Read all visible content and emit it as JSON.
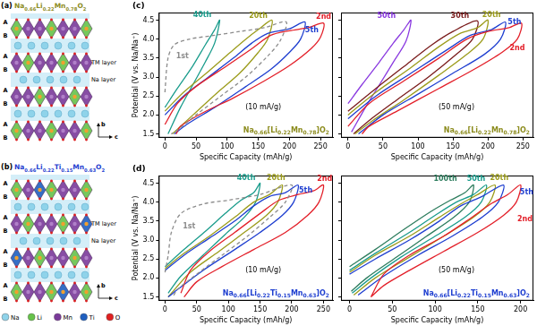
{
  "structures": [
    {
      "panel": "(a)",
      "formula": "Na0.66Li0.22Mn0.78O2",
      "color": "#8c8c1e",
      "layer_labels": [
        "A",
        "B",
        "A",
        "B",
        "A",
        "B",
        "A",
        "B"
      ],
      "layer_names": [
        "TM layer",
        "Na layer"
      ],
      "axes": [
        "b",
        "c"
      ]
    },
    {
      "panel": "(b)",
      "formula": "Na0.66Li0.22Ti0.15Mn0.63O2",
      "color": "#1f3fd0",
      "layer_labels": [
        "A",
        "B",
        "A",
        "B",
        "A",
        "B",
        "A",
        "B"
      ],
      "layer_names": [
        "TM layer",
        "Na layer"
      ],
      "axes": [
        "b",
        "c"
      ]
    }
  ],
  "structure_legend": [
    {
      "label": "Na",
      "color": "#8fd3ea"
    },
    {
      "label": "Li",
      "color": "#66c24a"
    },
    {
      "label": "Mn",
      "color": "#7a3a9a"
    },
    {
      "label": "Ti",
      "color": "#1f5fbf"
    },
    {
      "label": "O",
      "color": "#e02020"
    }
  ],
  "chart_data": [
    {
      "type": "line",
      "panel": "(c)",
      "title": "Na0.66[Li0.22Mn0.78]O2",
      "color": "#8c8c1e",
      "subtitle": "(10 mA/g)",
      "x_label": "Specific Capacity (mAh/g)",
      "y_label": "Potential (V vs. Na/Na⁺)",
      "xlim": [
        -10,
        270
      ],
      "ylim": [
        1.4,
        4.7
      ],
      "xticks": [
        0,
        50,
        100,
        150,
        200,
        250
      ],
      "yticks": [
        1.5,
        {
          "value": 2,
          "label": "2.0"
        },
        2.5,
        {
          "value": 3,
          "label": "3.0"
        },
        3.5,
        {
          "value": 4,
          "label": "4.0"
        },
        4.5
      ],
      "grid": false,
      "series": [
        {
          "name": "1st",
          "color": "#8c8c8c",
          "line_style": "dashed",
          "x": [
            0,
            5,
            15,
            40,
            80,
            120,
            160,
            195,
            185,
            165,
            130,
            90,
            50,
            20,
            10
          ],
          "values": [
            2.6,
            3.5,
            3.85,
            4.0,
            4.1,
            4.2,
            4.3,
            4.45,
            3.95,
            3.55,
            3.0,
            2.5,
            2.0,
            1.6,
            1.5
          ]
        },
        {
          "name": "2nd",
          "color": "#e3202a",
          "x": [
            0,
            20,
            50,
            100,
            140,
            170,
            200,
            230,
            255,
            250,
            235,
            200,
            160,
            110,
            60,
            25,
            18
          ],
          "values": [
            1.75,
            2.3,
            2.75,
            3.3,
            3.75,
            4.1,
            4.22,
            4.3,
            4.42,
            4.05,
            3.75,
            3.3,
            2.9,
            2.45,
            2.05,
            1.7,
            1.5
          ]
        },
        {
          "name": "5th",
          "color": "#1f3fd0",
          "x": [
            0,
            30,
            70,
            110,
            140,
            165,
            200,
            225,
            218,
            200,
            170,
            130,
            80,
            35,
            15
          ],
          "values": [
            2.0,
            2.5,
            3.0,
            3.5,
            3.9,
            4.15,
            4.27,
            4.45,
            4.0,
            3.65,
            3.2,
            2.75,
            2.2,
            1.75,
            1.5
          ]
        },
        {
          "name": "20th",
          "color": "#9c9c1c",
          "x": [
            0,
            30,
            70,
            105,
            130,
            150,
            172,
            165,
            150,
            120,
            85,
            45,
            12
          ],
          "values": [
            2.1,
            2.6,
            3.15,
            3.65,
            4.0,
            4.25,
            4.5,
            4.0,
            3.65,
            3.1,
            2.6,
            2.0,
            1.5
          ]
        },
        {
          "name": "40th",
          "color": "#1a9c8c",
          "x": [
            0,
            20,
            45,
            65,
            80,
            88,
            80,
            65,
            45,
            25,
            5
          ],
          "values": [
            2.2,
            2.7,
            3.3,
            3.85,
            4.25,
            4.5,
            3.9,
            3.4,
            2.8,
            2.2,
            1.5
          ]
        }
      ],
      "annotations": [
        {
          "text": "1st",
          "x": 28,
          "y": 3.55,
          "color": "#8c8c8c"
        },
        {
          "text": "40th",
          "x": 60,
          "y": 4.62,
          "color": "#1a9c8c"
        },
        {
          "text": "20th",
          "x": 150,
          "y": 4.6,
          "color": "#9c9c1c"
        },
        {
          "text": "5th",
          "x": 236,
          "y": 4.22,
          "color": "#1f3fd0"
        },
        {
          "text": "2nd",
          "x": 255,
          "y": 4.58,
          "color": "#e3202a"
        }
      ]
    },
    {
      "type": "line",
      "title": "Na0.66[Li0.22Mn0.78]O2",
      "color": "#8c8c1e",
      "subtitle": "(50 mA/g)",
      "x_label": "Specific Capacity (mAh/g)",
      "xlim": [
        -10,
        265
      ],
      "ylim": [
        1.4,
        4.7
      ],
      "xticks": [
        0,
        50,
        100,
        150,
        200,
        250
      ],
      "yticks": [
        1.5,
        {
          "value": 2,
          "label": "2.0"
        },
        2.5,
        {
          "value": 3,
          "label": "3.0"
        },
        3.5,
        {
          "value": 4,
          "label": "4.0"
        },
        4.5
      ],
      "grid": false,
      "tick_labels": "x",
      "series": [
        {
          "name": "2nd",
          "color": "#e3202a",
          "x": [
            0,
            30,
            80,
            130,
            170,
            200,
            230,
            248,
            242,
            220,
            180,
            130,
            70,
            30,
            20
          ],
          "values": [
            1.7,
            2.3,
            2.9,
            3.5,
            4.0,
            4.2,
            4.3,
            4.42,
            4.0,
            3.65,
            3.2,
            2.7,
            2.1,
            1.7,
            1.5
          ]
        },
        {
          "name": "5th",
          "color": "#1f3fd0",
          "x": [
            0,
            40,
            90,
            140,
            175,
            205,
            225,
            218,
            195,
            150,
            100,
            50,
            15
          ],
          "values": [
            1.9,
            2.5,
            3.1,
            3.7,
            4.1,
            4.25,
            4.45,
            4.0,
            3.6,
            3.1,
            2.55,
            2.0,
            1.5
          ]
        },
        {
          "name": "20th",
          "color": "#9c9c1c",
          "x": [
            0,
            40,
            90,
            130,
            160,
            185,
            200,
            193,
            170,
            130,
            80,
            35,
            10
          ],
          "values": [
            2.0,
            2.6,
            3.25,
            3.8,
            4.15,
            4.3,
            4.5,
            4.0,
            3.6,
            3.05,
            2.4,
            1.85,
            1.5
          ]
        },
        {
          "name": "30th",
          "color": "#7a1c1c",
          "x": [
            0,
            40,
            85,
            120,
            150,
            185,
            178,
            155,
            115,
            70,
            30,
            8
          ],
          "values": [
            2.1,
            2.7,
            3.35,
            3.85,
            4.2,
            4.48,
            4.0,
            3.6,
            3.0,
            2.4,
            1.85,
            1.5
          ]
        },
        {
          "name": "50th",
          "color": "#8a3ae0",
          "x": [
            0,
            20,
            45,
            65,
            80,
            90,
            83,
            65,
            45,
            25,
            5
          ],
          "values": [
            2.3,
            2.8,
            3.4,
            3.9,
            4.25,
            4.5,
            3.95,
            3.4,
            2.8,
            2.2,
            1.55
          ]
        }
      ],
      "annotations": [
        {
          "text": "50th",
          "x": 55,
          "y": 4.6,
          "color": "#8a3ae0"
        },
        {
          "text": "30th",
          "x": 160,
          "y": 4.6,
          "color": "#7a1c1c"
        },
        {
          "text": "20th",
          "x": 205,
          "y": 4.62,
          "color": "#9c9c1c"
        },
        {
          "text": "5th",
          "x": 238,
          "y": 4.45,
          "color": "#1f3fd0"
        },
        {
          "text": "2nd",
          "x": 242,
          "y": 3.75,
          "color": "#e3202a"
        }
      ]
    },
    {
      "type": "line",
      "panel": "(d)",
      "title": "Na0.66[Li0.22Ti0.15Mn0.63]O2",
      "color": "#1f3fd0",
      "subtitle": "(10 mA/g)",
      "x_label": "Specific Capacity (mAh/g)",
      "y_label": "Potential (V vs. Na/Na⁺)",
      "xlim": [
        -10,
        265
      ],
      "ylim": [
        1.4,
        4.7
      ],
      "xticks": [
        0,
        50,
        100,
        150,
        200,
        250
      ],
      "yticks": [
        1.5,
        {
          "value": 2,
          "label": "2.0"
        },
        2.5,
        {
          "value": 3,
          "label": "3.0"
        },
        3.5,
        {
          "value": 4,
          "label": "4.0"
        },
        4.5
      ],
      "grid": false,
      "series": [
        {
          "name": "1st",
          "color": "#8c8c8c",
          "line_style": "dashed",
          "x": [
            0,
            5,
            10,
            25,
            60,
            100,
            150,
            200,
            190,
            165,
            130,
            90,
            50,
            20,
            12
          ],
          "values": [
            2.15,
            2.6,
            3.2,
            3.7,
            3.95,
            4.05,
            4.2,
            4.45,
            4.0,
            3.6,
            3.1,
            2.6,
            2.1,
            1.7,
            1.5
          ]
        },
        {
          "name": "2nd",
          "color": "#e3202a",
          "x": [
            25,
            40,
            70,
            110,
            150,
            180,
            210,
            235,
            250,
            243,
            225,
            190,
            140,
            90,
            50,
            30
          ],
          "values": [
            1.6,
            2.2,
            2.7,
            3.2,
            3.7,
            4.05,
            4.2,
            4.3,
            4.45,
            4.0,
            3.65,
            3.2,
            2.75,
            2.3,
            1.9,
            1.5
          ]
        },
        {
          "name": "5th",
          "color": "#1f3fd0",
          "x": [
            0,
            30,
            70,
            110,
            140,
            165,
            190,
            210,
            203,
            185,
            150,
            110,
            60,
            20,
            5
          ],
          "values": [
            2.2,
            2.6,
            3.05,
            3.5,
            3.9,
            4.15,
            4.25,
            4.45,
            4.0,
            3.65,
            3.2,
            2.75,
            2.2,
            1.7,
            1.5
          ]
        },
        {
          "name": "20th",
          "color": "#9c9c1c",
          "x": [
            0,
            30,
            70,
            110,
            140,
            165,
            185,
            178,
            160,
            125,
            85,
            40,
            10,
            5
          ],
          "values": [
            2.25,
            2.65,
            3.1,
            3.6,
            4.0,
            4.2,
            4.45,
            4.0,
            3.65,
            3.2,
            2.7,
            2.15,
            1.6,
            1.5
          ]
        },
        {
          "name": "40th",
          "color": "#1a9c8c",
          "x": [
            0,
            30,
            65,
            95,
            120,
            140,
            150,
            143,
            125,
            95,
            60,
            25,
            5
          ],
          "values": [
            2.3,
            2.75,
            3.25,
            3.7,
            4.05,
            4.25,
            4.5,
            4.0,
            3.6,
            3.15,
            2.6,
            2.05,
            1.6
          ]
        }
      ],
      "annotations": [
        {
          "text": "1st",
          "x": 38,
          "y": 3.35,
          "color": "#8c8c8c"
        },
        {
          "text": "40th",
          "x": 128,
          "y": 4.62,
          "color": "#1a9c8c"
        },
        {
          "text": "20th",
          "x": 175,
          "y": 4.62,
          "color": "#9c9c1c"
        },
        {
          "text": "5th",
          "x": 222,
          "y": 4.3,
          "color": "#1f3fd0"
        },
        {
          "text": "2nd",
          "x": 252,
          "y": 4.6,
          "color": "#e3202a"
        }
      ]
    },
    {
      "type": "line",
      "title": "Na0.66[Li0.22Ti0.15Mn0.63]O2",
      "color": "#1f3fd0",
      "subtitle": "(50 mA/g)",
      "x_label": "Specific Capacity (mAh/g)",
      "xlim": [
        -10,
        215
      ],
      "ylim": [
        1.4,
        4.7
      ],
      "xticks": [
        0,
        50,
        100,
        150,
        200
      ],
      "yticks": [
        1.5,
        {
          "value": 2,
          "label": "2.0"
        },
        2.5,
        {
          "value": 3,
          "label": "3.0"
        },
        3.5,
        {
          "value": 4,
          "label": "4.0"
        },
        4.5
      ],
      "grid": false,
      "tick_labels": "x",
      "series": [
        {
          "name": "2nd",
          "color": "#e3202a",
          "x": [
            25,
            40,
            70,
            110,
            140,
            165,
            185,
            200,
            195,
            180,
            150,
            110,
            70,
            40,
            25
          ],
          "values": [
            1.5,
            2.1,
            2.6,
            3.1,
            3.55,
            3.95,
            4.2,
            4.45,
            4.0,
            3.65,
            3.2,
            2.7,
            2.2,
            1.8,
            1.5
          ]
        },
        {
          "name": "5th",
          "color": "#1f3fd0",
          "x": [
            0,
            30,
            70,
            105,
            130,
            155,
            180,
            174,
            155,
            120,
            80,
            40,
            10
          ],
          "values": [
            2.1,
            2.5,
            3.0,
            3.5,
            3.9,
            4.15,
            4.45,
            4.0,
            3.6,
            3.1,
            2.6,
            2.05,
            1.55
          ]
        },
        {
          "name": "20th",
          "color": "#9c9c1c",
          "x": [
            0,
            30,
            70,
            105,
            130,
            150,
            170,
            164,
            145,
            110,
            70,
            30,
            5
          ],
          "values": [
            2.15,
            2.6,
            3.1,
            3.6,
            3.95,
            4.2,
            4.45,
            4.0,
            3.6,
            3.1,
            2.55,
            2.0,
            1.55
          ]
        },
        {
          "name": "50th",
          "color": "#1a9c8c",
          "x": [
            0,
            30,
            70,
            100,
            125,
            145,
            160,
            154,
            135,
            100,
            60,
            25,
            3
          ],
          "values": [
            2.2,
            2.65,
            3.2,
            3.65,
            4.0,
            4.2,
            4.45,
            4.0,
            3.6,
            3.1,
            2.55,
            2.0,
            1.6
          ]
        },
        {
          "name": "100th",
          "color": "#2e7d5e",
          "x": [
            0,
            30,
            65,
            95,
            118,
            135,
            145,
            140,
            122,
            90,
            55,
            20,
            2
          ],
          "values": [
            2.3,
            2.75,
            3.3,
            3.75,
            4.05,
            4.25,
            4.45,
            4.0,
            3.6,
            3.1,
            2.55,
            2.0,
            1.65
          ]
        }
      ],
      "annotations": [
        {
          "text": "100th",
          "x": 112,
          "y": 4.6,
          "color": "#2e7d5e"
        },
        {
          "text": "50th",
          "x": 148,
          "y": 4.6,
          "color": "#1a9c8c"
        },
        {
          "text": "20th",
          "x": 175,
          "y": 4.62,
          "color": "#9c9c1c"
        },
        {
          "text": "5th",
          "x": 207,
          "y": 4.25,
          "color": "#1f3fd0"
        },
        {
          "text": "2nd",
          "x": 205,
          "y": 3.55,
          "color": "#e3202a"
        }
      ]
    }
  ]
}
